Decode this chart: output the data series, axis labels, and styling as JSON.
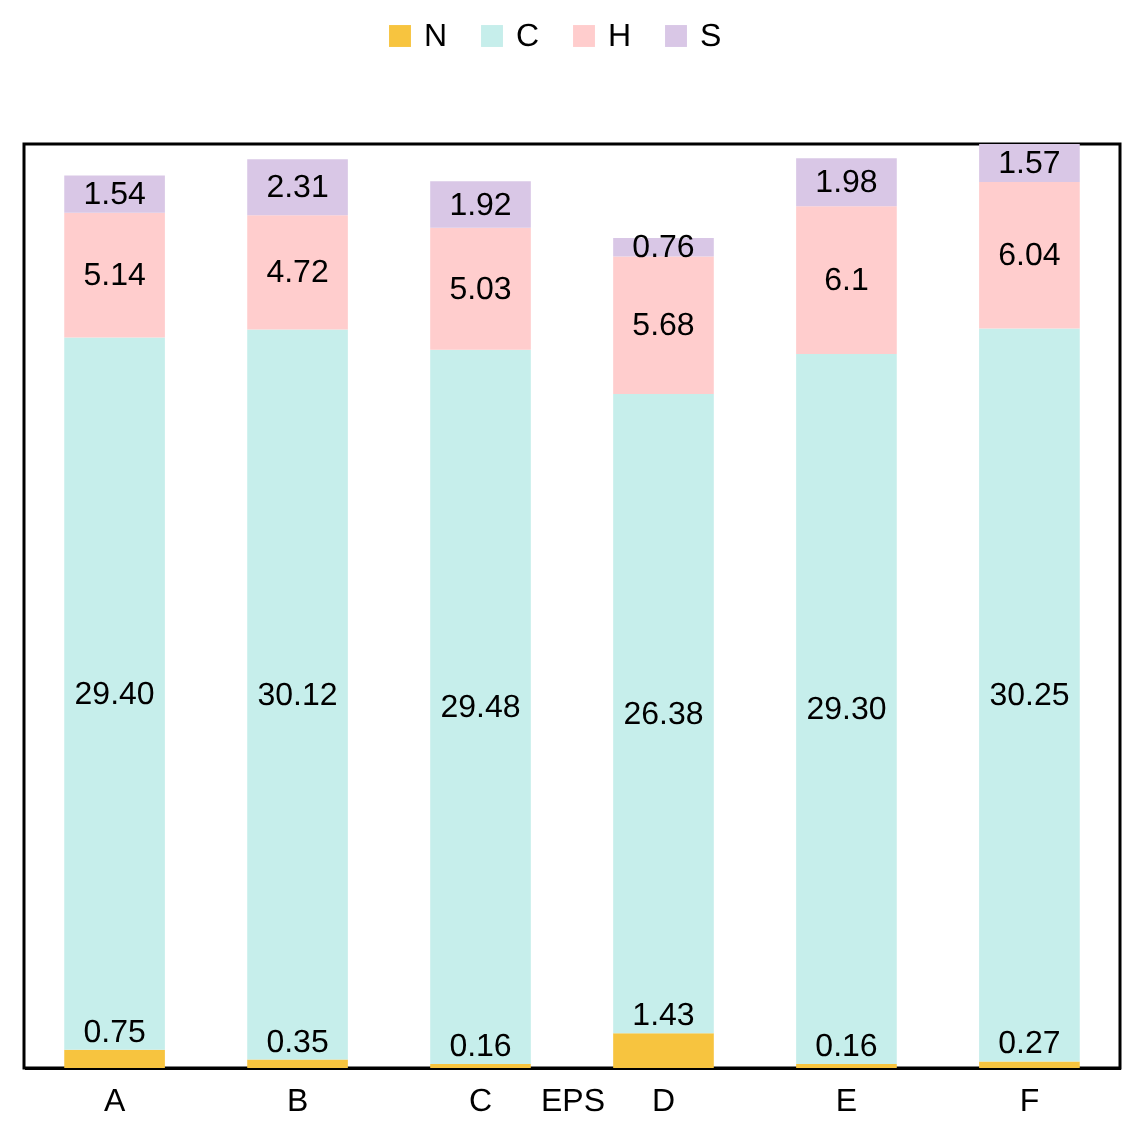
{
  "chart_data": {
    "type": "bar",
    "stacked": true,
    "xlabel": "EPS",
    "categories": [
      "A",
      "B",
      "C",
      "D",
      "E",
      "F"
    ],
    "legend": "top",
    "series": [
      {
        "name": "N",
        "color": "#f7c43f",
        "values": [
          0.75,
          0.35,
          0.16,
          1.43,
          0.16,
          0.27
        ],
        "value_labels": [
          "0.75",
          "0.35",
          "0.16",
          "1.43",
          "0.16",
          "0.27"
        ]
      },
      {
        "name": "C",
        "color": "#c6eeeb",
        "values": [
          29.4,
          30.12,
          29.48,
          26.38,
          29.3,
          30.25
        ],
        "value_labels": [
          "29.40",
          "30.12",
          "29.48",
          "26.38",
          "29.30",
          "30.25"
        ]
      },
      {
        "name": "H",
        "color": "#ffcdcd",
        "values": [
          5.14,
          4.72,
          5.03,
          5.68,
          6.1,
          6.04
        ],
        "value_labels": [
          "5.14",
          "4.72",
          "5.03",
          "5.68",
          "6.1",
          "6.04"
        ]
      },
      {
        "name": "S",
        "color": "#d9c7e6",
        "values": [
          1.54,
          2.31,
          1.92,
          0.76,
          1.98,
          1.57
        ],
        "value_labels": [
          "1.54",
          "2.31",
          "1.92",
          "0.76",
          "1.98",
          "1.57"
        ]
      }
    ]
  }
}
